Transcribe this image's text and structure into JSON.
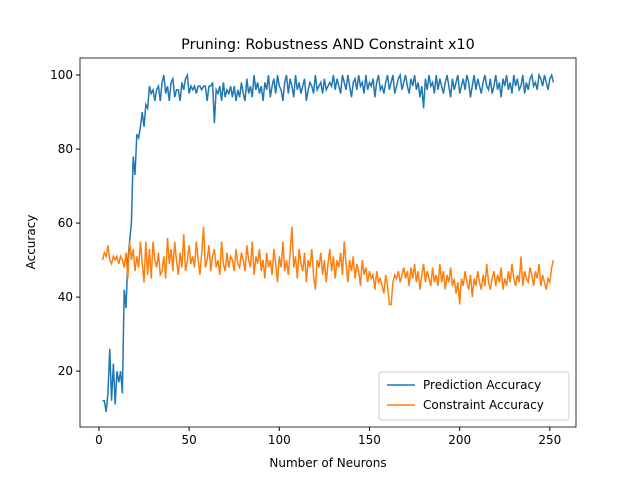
{
  "chart_data": {
    "type": "line",
    "title": "Pruning: Robustness AND Constraint x10",
    "xlabel": "Number of Neurons",
    "ylabel": "Accuracy",
    "x": [
      2,
      3,
      4,
      5,
      6,
      7,
      8,
      9,
      10,
      11,
      12,
      13,
      14,
      15,
      16,
      17,
      18,
      19,
      20,
      21,
      22,
      23,
      24,
      25,
      26,
      27,
      28,
      29,
      30,
      31,
      32,
      33,
      34,
      35,
      36,
      37,
      38,
      39,
      40,
      41,
      42,
      43,
      44,
      45,
      46,
      47,
      48,
      49,
      50,
      51,
      52,
      53,
      54,
      55,
      56,
      57,
      58,
      59,
      60,
      61,
      62,
      63,
      64,
      65,
      66,
      67,
      68,
      69,
      70,
      71,
      72,
      73,
      74,
      75,
      76,
      77,
      78,
      79,
      80,
      81,
      82,
      83,
      84,
      85,
      86,
      87,
      88,
      89,
      90,
      91,
      92,
      93,
      94,
      95,
      96,
      97,
      98,
      99,
      100,
      101,
      102,
      103,
      104,
      105,
      106,
      107,
      108,
      109,
      110,
      111,
      112,
      113,
      114,
      115,
      116,
      117,
      118,
      119,
      120,
      121,
      122,
      123,
      124,
      125,
      126,
      127,
      128,
      129,
      130,
      131,
      132,
      133,
      134,
      135,
      136,
      137,
      138,
      139,
      140,
      141,
      142,
      143,
      144,
      145,
      146,
      147,
      148,
      149,
      150,
      151,
      152,
      153,
      154,
      155,
      156,
      157,
      158,
      159,
      160,
      161,
      162,
      163,
      164,
      165,
      166,
      167,
      168,
      169,
      170,
      171,
      172,
      173,
      174,
      175,
      176,
      177,
      178,
      179,
      180,
      181,
      182,
      183,
      184,
      185,
      186,
      187,
      188,
      189,
      190,
      191,
      192,
      193,
      194,
      195,
      196,
      197,
      198,
      199,
      200,
      201,
      202,
      203,
      204,
      205,
      206,
      207,
      208,
      209,
      210,
      211,
      212,
      213,
      214,
      215,
      216,
      217,
      218,
      219,
      220,
      221,
      222,
      223,
      224,
      225,
      226,
      227,
      228,
      229,
      230,
      231,
      232,
      233,
      234,
      235,
      236,
      237,
      238,
      239,
      240,
      241,
      242,
      243,
      244,
      245,
      246,
      247,
      248,
      249,
      250,
      251,
      252
    ],
    "series": [
      {
        "name": "Prediction Accuracy",
        "color": "#1f77b4",
        "values": [
          12,
          12,
          9,
          14,
          26,
          12,
          22,
          11,
          20,
          17,
          20,
          14,
          42,
          37,
          50,
          55,
          60,
          78,
          73,
          84,
          83,
          86,
          90,
          86,
          92,
          91,
          97,
          95,
          96,
          93,
          96,
          97,
          93,
          98,
          100,
          95,
          97,
          93,
          98,
          99,
          94,
          96,
          96,
          93,
          98,
          96,
          99,
          100,
          95,
          97,
          96,
          97,
          95,
          97,
          97,
          96,
          97,
          97,
          93,
          97,
          97,
          98,
          87,
          96,
          95,
          97,
          93,
          98,
          94,
          96,
          95,
          97,
          94,
          97,
          93,
          96,
          94,
          98,
          95,
          93,
          99,
          95,
          97,
          94,
          100,
          96,
          98,
          95,
          97,
          93,
          98,
          96,
          100,
          94,
          97,
          99,
          95,
          100,
          97,
          96,
          93,
          98,
          100,
          95,
          99,
          97,
          94,
          100,
          96,
          98,
          95,
          97,
          99,
          93,
          96,
          98,
          97,
          95,
          100,
          96,
          97,
          98,
          95,
          99,
          96,
          97,
          98,
          97,
          100,
          96,
          99,
          97,
          95,
          100,
          98,
          96,
          100,
          97,
          94,
          98,
          99,
          96,
          100,
          97,
          98,
          95,
          100,
          96,
          98,
          97,
          99,
          94,
          98,
          100,
          96,
          97,
          95,
          98,
          100,
          96,
          98,
          100,
          95,
          97,
          99,
          100,
          96,
          98,
          100,
          97,
          95,
          99,
          97,
          100,
          96,
          98,
          94,
          97,
          91,
          99,
          96,
          100,
          97,
          98,
          95,
          100,
          96,
          99,
          97,
          95,
          98,
          100,
          97,
          94,
          99,
          96,
          98,
          100,
          95,
          97,
          99,
          96,
          100,
          98,
          94,
          97,
          100,
          96,
          99,
          97,
          95,
          98,
          100,
          97,
          96,
          99,
          95,
          97,
          100,
          96,
          98,
          94,
          99,
          97,
          100,
          96,
          98,
          95,
          100,
          97,
          99,
          96,
          97,
          100,
          95,
          98,
          96,
          99,
          100,
          97,
          98,
          96,
          100,
          99,
          97,
          100,
          98,
          96,
          99,
          100,
          98
        ]
      },
      {
        "name": "Constraint Accuracy",
        "color": "#ff7f0e",
        "values": [
          50,
          52,
          51,
          54,
          50,
          49,
          51,
          50,
          51,
          49,
          51,
          50,
          48,
          52,
          45,
          55,
          50,
          53,
          47,
          51,
          48,
          55,
          49,
          44,
          55,
          46,
          53,
          45,
          55,
          50,
          48,
          52,
          46,
          47,
          51,
          45,
          56,
          49,
          53,
          47,
          55,
          50,
          46,
          52,
          48,
          57,
          47,
          50,
          54,
          49,
          51,
          48,
          55,
          50,
          46,
          52,
          59,
          48,
          50,
          54,
          47,
          51,
          53,
          48,
          50,
          46,
          55,
          49,
          47,
          52,
          48,
          51,
          50,
          47,
          53,
          49,
          48,
          52,
          50,
          47,
          54,
          50,
          48,
          55,
          46,
          51,
          49,
          53,
          47,
          50,
          45,
          52,
          48,
          50,
          46,
          53,
          49,
          44,
          51,
          48,
          55,
          47,
          50,
          46,
          52,
          59,
          48,
          51,
          45,
          53,
          49,
          47,
          52,
          44,
          50,
          48,
          53,
          46,
          42,
          50,
          48,
          52,
          46,
          50,
          44,
          49,
          53,
          47,
          51,
          45,
          50,
          48,
          52,
          46,
          55,
          49,
          44,
          50,
          47,
          51,
          45,
          49,
          47,
          43,
          50,
          46,
          48,
          44,
          47,
          45,
          46,
          42,
          47,
          44,
          45,
          43,
          41,
          46,
          43,
          38,
          38,
          44,
          46,
          45,
          47,
          44,
          46,
          48,
          45,
          47,
          43,
          48,
          45,
          49,
          44,
          47,
          42,
          46,
          49,
          44,
          47,
          45,
          43,
          48,
          44,
          46,
          43,
          49,
          44,
          47,
          42,
          46,
          44,
          48,
          43,
          45,
          41,
          44,
          38,
          45,
          43,
          47,
          44,
          42,
          46,
          40,
          45,
          43,
          47,
          44,
          42,
          46,
          43,
          49,
          44,
          42,
          45,
          47,
          43,
          46,
          44,
          48,
          42,
          45,
          43,
          47,
          44,
          49,
          45,
          43,
          46,
          44,
          51,
          43,
          47,
          45,
          44,
          48,
          46,
          43,
          47,
          45,
          49,
          43,
          46,
          44,
          42,
          45,
          44,
          48,
          50
        ]
      }
    ],
    "xlim": [
      -10.5,
      264.5
    ],
    "xticks": [
      0,
      50,
      100,
      150,
      200,
      250
    ],
    "ylim": [
      4.9,
      104.6
    ],
    "yticks": [
      20,
      40,
      60,
      80,
      100
    ],
    "legend": "lower right"
  }
}
